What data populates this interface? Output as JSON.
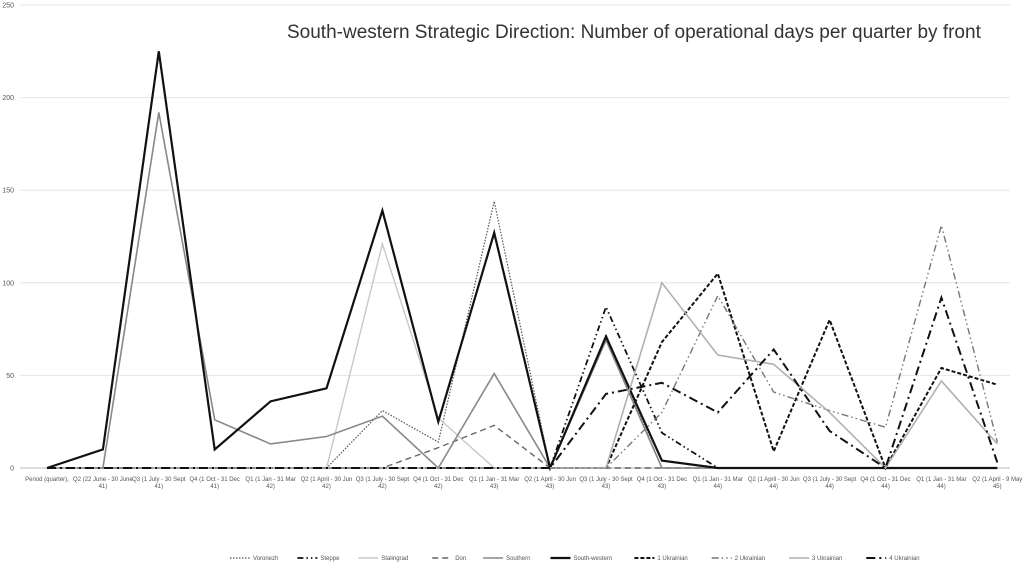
{
  "chart_data": {
    "type": "line",
    "title": "South-western Strategic Direction: Number of operational days per quarter by front",
    "xlabel": "",
    "ylabel": "",
    "ylim": [
      0,
      250
    ],
    "yticks": [
      0,
      50,
      100,
      150,
      200,
      250
    ],
    "grid": true,
    "legend_placement": "bottom",
    "categories": [
      "Period (quarter),",
      "Q2 (22 June - 30 June 41)",
      "Q3 (1 July - 30 Sept 41)",
      "Q4 (1 Oct - 31 Dec 41)",
      "Q1 (1 Jan - 31 Mar 42)",
      "Q2 (1 April - 30 Jun 42)",
      "Q3 (1 July - 30 Sept 42)",
      "Q4 (1 Oct - 31 Dec 42)",
      "Q1 (1 Jan - 31 Mar 43)",
      "Q2 (1 April - 30 Jun 43)",
      "Q3 (1 July - 30 Sept 43)",
      "Q4 (1 Oct - 31 Dec 43)",
      "Q1 (1 Jan - 31 Mar 44)",
      "Q2 (1 April - 30 Jun 44)",
      "Q3 (1 July - 30 Sept 44)",
      "Q4 (1 Oct - 31 Dec 44)",
      "Q1 (1 Jan - 31 Mar 44)",
      "Q2 (1 April - 9 May 45)"
    ],
    "series": [
      {
        "name": "Voronezh",
        "color": "#555555",
        "values": [
          0,
          0,
          0,
          0,
          0,
          0,
          31,
          14,
          144,
          0,
          72,
          0,
          0,
          0,
          0,
          0,
          0,
          0
        ]
      },
      {
        "name": "Steppe",
        "color": "#111111",
        "values": [
          0,
          0,
          0,
          0,
          0,
          0,
          0,
          0,
          0,
          0,
          87,
          19,
          0,
          0,
          0,
          0,
          0,
          0
        ]
      },
      {
        "name": "Stalingrad",
        "color": "#c8c8c8",
        "values": [
          0,
          0,
          0,
          0,
          0,
          0,
          121,
          27,
          0,
          0,
          0,
          0,
          0,
          0,
          0,
          0,
          0,
          0
        ]
      },
      {
        "name": "Don",
        "color": "#666666",
        "values": [
          0,
          0,
          0,
          0,
          0,
          0,
          0,
          11,
          23,
          0,
          0,
          0,
          0,
          0,
          0,
          0,
          0,
          0
        ]
      },
      {
        "name": "Southern",
        "color": "#888888",
        "values": [
          0,
          0,
          192,
          26,
          13,
          17,
          28,
          0,
          51,
          0,
          69,
          0,
          0,
          0,
          0,
          0,
          0,
          0
        ]
      },
      {
        "name": "South-western",
        "color": "#111111",
        "values": [
          0,
          10,
          225,
          10,
          36,
          43,
          139,
          25,
          127,
          0,
          71,
          4,
          0,
          0,
          0,
          0,
          0,
          0
        ]
      },
      {
        "name": "1 Ukrainian",
        "color": "#111111",
        "values": [
          0,
          0,
          0,
          0,
          0,
          0,
          0,
          0,
          0,
          0,
          0,
          68,
          105,
          9,
          80,
          0,
          54,
          45
        ]
      },
      {
        "name": "2 Ukrainian",
        "color": "#777777",
        "values": [
          0,
          0,
          0,
          0,
          0,
          0,
          0,
          0,
          0,
          0,
          0,
          30,
          93,
          41,
          31,
          22,
          131,
          14
        ]
      },
      {
        "name": "3 Ukrainian",
        "color": "#b0b0b0",
        "values": [
          0,
          0,
          0,
          0,
          0,
          0,
          0,
          0,
          0,
          0,
          0,
          100,
          61,
          56,
          30,
          0,
          47,
          13
        ]
      },
      {
        "name": "4 Ukrainian",
        "color": "#111111",
        "values": [
          0,
          0,
          0,
          0,
          0,
          0,
          0,
          0,
          0,
          0,
          40,
          46,
          30,
          64,
          20,
          0,
          92,
          3
        ]
      }
    ]
  }
}
